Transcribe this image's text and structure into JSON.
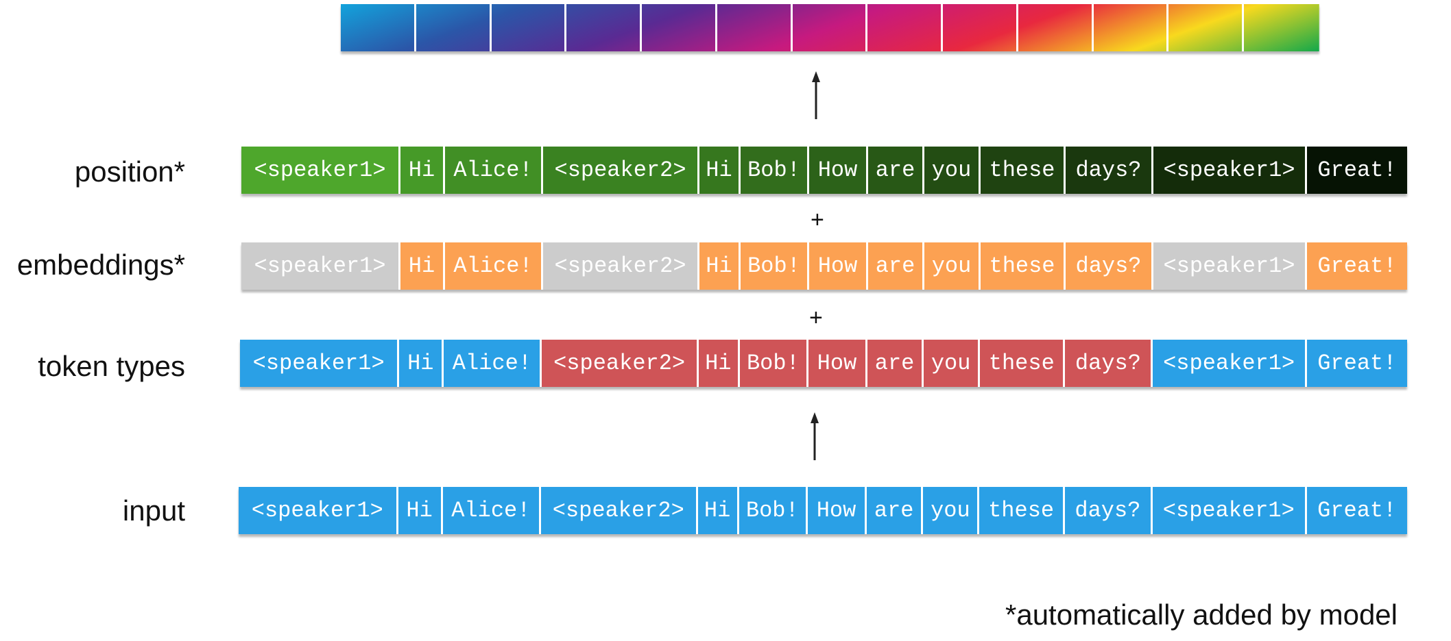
{
  "tokens": [
    "<speaker1>",
    "Hi",
    "Alice!",
    "<speaker2>",
    "Hi",
    "Bob!",
    "How",
    "are",
    "you",
    "these",
    "days?",
    "<speaker1>",
    "Great!"
  ],
  "rows": {
    "position": {
      "label": "position*",
      "colors": [
        "#4ea72c",
        "#469a28",
        "#418f25",
        "#3a8221",
        "#36771e",
        "#326d1c",
        "#2c6219",
        "#285816",
        "#234d13",
        "#1f4311",
        "#1a380e",
        "#142c0a",
        "#061304"
      ]
    },
    "embeddings": {
      "label": "embeddings*",
      "colors": [
        "#cccccc",
        "#fca152",
        "#fca152",
        "#cccccc",
        "#fca152",
        "#fca152",
        "#fca152",
        "#fca152",
        "#fca152",
        "#fca152",
        "#fca152",
        "#cccccc",
        "#fca152"
      ]
    },
    "token_types": {
      "label": "token types",
      "colors": [
        "#2aa0e6",
        "#2aa0e6",
        "#2aa0e6",
        "#cf5457",
        "#cf5457",
        "#cf5457",
        "#cf5457",
        "#cf5457",
        "#cf5457",
        "#cf5457",
        "#cf5457",
        "#2aa0e6",
        "#2aa0e6"
      ]
    },
    "input": {
      "label": "input",
      "colors": [
        "#2aa0e6",
        "#2aa0e6",
        "#2aa0e6",
        "#2aa0e6",
        "#2aa0e6",
        "#2aa0e6",
        "#2aa0e6",
        "#2aa0e6",
        "#2aa0e6",
        "#2aa0e6",
        "#2aa0e6",
        "#2aa0e6",
        "#2aa0e6"
      ]
    }
  },
  "operators": {
    "plus": "+"
  },
  "output_gradient": [
    "#13a3dc",
    "#2b56a8",
    "#5a2a93",
    "#c61a7f",
    "#e8283f",
    "#f8d91e",
    "#13a84a"
  ],
  "footnote": "*automatically added by model"
}
